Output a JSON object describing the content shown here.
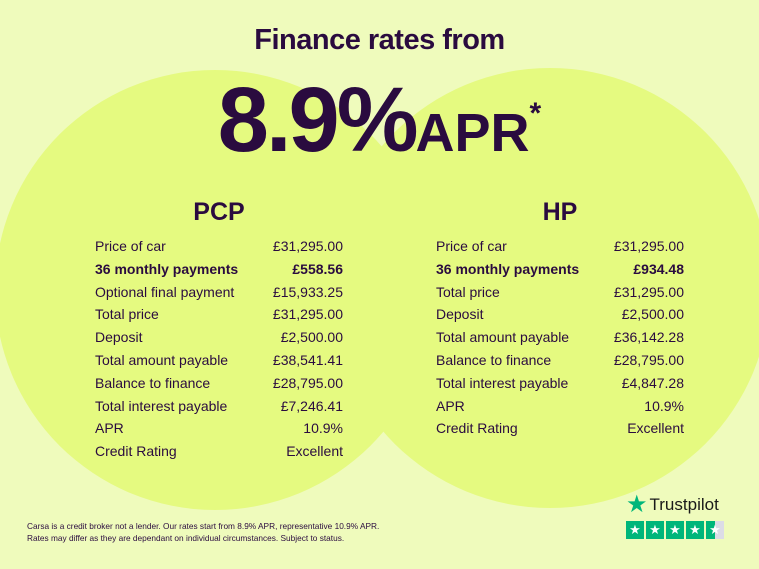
{
  "title": "Finance rates from",
  "headline": {
    "rate": "8.9%",
    "unit": "APR",
    "asterisk": "*"
  },
  "colors": {
    "background": "#effbbc",
    "circle": "#e5fa80",
    "text": "#2a0b3f",
    "trustpilot": "#00b67a"
  },
  "pcp": {
    "heading": "PCP",
    "rows": [
      {
        "label": "Price of car",
        "value": "£31,295.00"
      },
      {
        "label": "36 monthly payments",
        "value": "£558.56",
        "bold": true
      },
      {
        "label": "Optional final payment",
        "value": "£15,933.25"
      },
      {
        "label": "Total price",
        "value": "£31,295.00"
      },
      {
        "label": "Deposit",
        "value": "£2,500.00"
      },
      {
        "label": "Total amount payable",
        "value": "£38,541.41"
      },
      {
        "label": "Balance to finance",
        "value": "£28,795.00"
      },
      {
        "label": "Total interest payable",
        "value": "£7,246.41"
      },
      {
        "label": "APR",
        "value": "10.9%"
      },
      {
        "label": "Credit Rating",
        "value": "Excellent"
      }
    ]
  },
  "hp": {
    "heading": "HP",
    "rows": [
      {
        "label": "Price of car",
        "value": "£31,295.00"
      },
      {
        "label": "36 monthly payments",
        "value": "£934.48",
        "bold": true
      },
      {
        "label": "Total price",
        "value": "£31,295.00"
      },
      {
        "label": "Deposit",
        "value": "£2,500.00"
      },
      {
        "label": "Total amount payable",
        "value": "£36,142.28"
      },
      {
        "label": "Balance to finance",
        "value": "£28,795.00"
      },
      {
        "label": "Total interest payable",
        "value": "£4,847.28"
      },
      {
        "label": "APR",
        "value": "10.9%"
      },
      {
        "label": "Credit Rating",
        "value": "Excellent"
      }
    ]
  },
  "disclaimer": [
    "Carsa is a credit broker not a lender. Our rates start from 8.9% APR, representative 10.9% APR.",
    "Rates may differ as they are dependant on individual circumstances. Subject to status."
  ],
  "trustpilot": {
    "label": "Trustpilot",
    "rating_stars": 4.5,
    "max_stars": 5,
    "icon": "star-icon"
  }
}
